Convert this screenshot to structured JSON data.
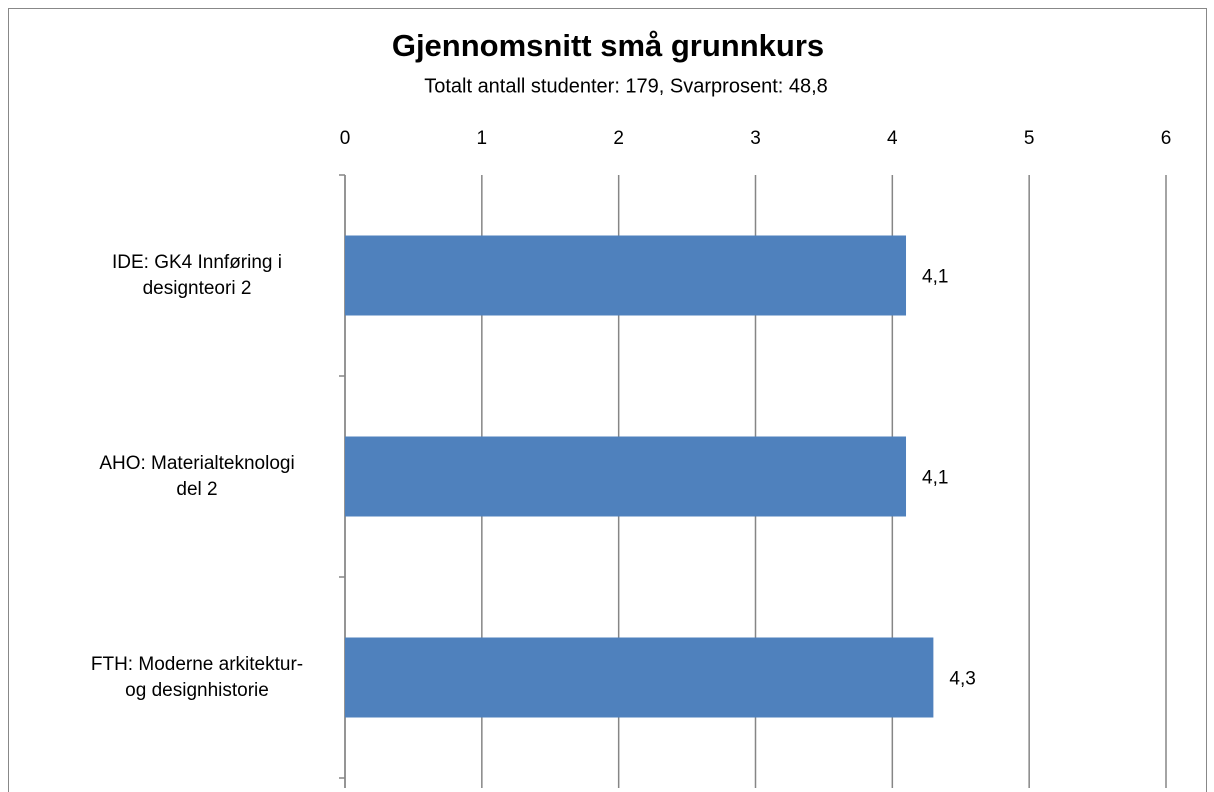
{
  "chart_data": {
    "type": "barh",
    "title": "Gjennomsnitt små grunnkurs",
    "subtitle": "Totalt antall studenter: 179, Svarprosent: 48,8",
    "categories": [
      "IDE: GK4 Innføring i\ndesignteori 2",
      "AHO: Materialteknologi\ndel 2",
      "FTH: Moderne arkitektur-\nog designhistorie"
    ],
    "values": [
      4.1,
      4.1,
      4.3
    ],
    "value_labels": [
      "4,1",
      "4,1",
      "4,3"
    ],
    "color": "#4f81bd",
    "xlim": [
      0,
      6
    ],
    "xticks": [
      0,
      1,
      2,
      3,
      4,
      5,
      6
    ],
    "grid": true
  }
}
